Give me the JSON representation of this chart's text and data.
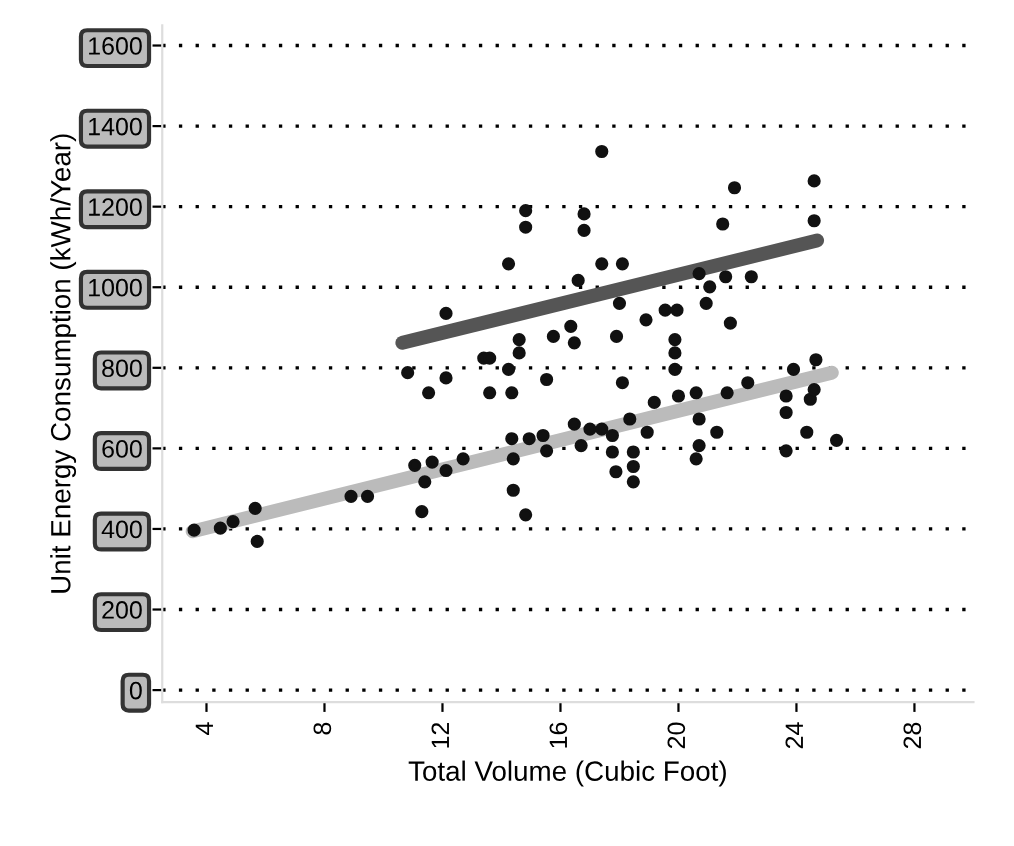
{
  "chart_data": {
    "type": "scatter",
    "xlabel": "Total Volume (Cubic Foot)",
    "ylabel": "Unit Energy Consumption (kWh/Year)",
    "xlim": [
      2.5,
      30
    ],
    "ylim": [
      -30,
      1650
    ],
    "xticks": [
      4,
      8,
      12,
      16,
      20,
      24,
      28
    ],
    "yticks": [
      0,
      200,
      400,
      600,
      800,
      1000,
      1200,
      1400,
      1600
    ],
    "grid": "y",
    "series": [
      {
        "marker": "circle",
        "color": "#111111",
        "x": [
          10.82,
          11.53,
          12.12,
          12.12,
          13.4,
          13.6,
          13.6,
          14.24,
          14.24,
          14.35,
          14.6,
          14.6,
          14.82,
          14.82,
          15.53,
          15.76,
          16.35,
          16.47,
          16.6,
          16.8,
          16.8,
          17.4,
          17.4,
          17.9,
          18.1,
          18.0,
          18.1,
          18.9,
          19.55,
          19.95,
          19.88,
          19.88,
          19.88,
          20.94,
          21.06,
          21.5,
          21.6,
          21.76,
          21.9,
          22.47,
          24.6,
          24.6,
          20.7
        ],
        "values": [
          788,
          738,
          775,
          935,
          824,
          824,
          738,
          1058,
          796,
          738,
          870,
          837,
          1190,
          1149,
          771,
          878,
          903,
          862,
          1017,
          1182,
          1141,
          1337,
          1058,
          878,
          1058,
          960,
          763,
          919,
          943,
          943,
          870,
          837,
          796,
          960,
          1001,
          1157,
          1026,
          911,
          1247,
          1026,
          1264,
          1165,
          1034
        ]
      },
      {
        "marker": "circle",
        "color": "#111111",
        "x": [
          3.58,
          4.47,
          4.9,
          5.65,
          5.72,
          8.9,
          9.46,
          11.06,
          11.3,
          11.4,
          11.65,
          12.12,
          12.7,
          14.35,
          14.4,
          14.4,
          14.82,
          14.94,
          15.41,
          15.53,
          16.47,
          16.7,
          17.0,
          17.4,
          17.76,
          17.76,
          17.88,
          18.35,
          18.47,
          18.47,
          18.47,
          18.94,
          19.18,
          20.0,
          20.6,
          20.7,
          20.7,
          20.6,
          21.3,
          21.65,
          22.35,
          23.65,
          23.65,
          23.65,
          23.9,
          24.35,
          24.47,
          24.6,
          24.66,
          25.36
        ],
        "values": [
          397,
          402,
          418,
          451,
          369,
          481,
          481,
          558,
          443,
          517,
          566,
          545,
          574,
          624,
          574,
          496,
          435,
          624,
          632,
          594,
          660,
          607,
          648,
          648,
          632,
          591,
          542,
          673,
          591,
          555,
          517,
          640,
          714,
          730,
          738,
          673,
          607,
          574,
          640,
          738,
          763,
          730,
          689,
          594,
          796,
          640,
          722,
          746,
          820,
          620
        ]
      },
      {
        "type": "line",
        "color": "#555555",
        "x": [
          10.64,
          24.7
        ],
        "values": [
          862,
          1116
        ]
      },
      {
        "type": "line",
        "color": "#bbbbbb",
        "x": [
          3.53,
          25.2
        ],
        "values": [
          394,
          788
        ]
      }
    ]
  }
}
